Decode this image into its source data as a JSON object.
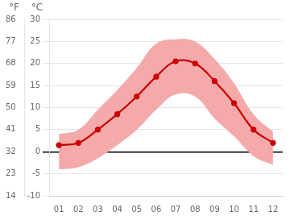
{
  "chart_data": {
    "type": "line",
    "categories": [
      "01",
      "02",
      "03",
      "04",
      "05",
      "06",
      "07",
      "08",
      "09",
      "10",
      "11",
      "12"
    ],
    "series": [
      {
        "values": [
          1.5,
          2.0,
          5.0,
          8.5,
          12.5,
          17.0,
          20.5,
          20.0,
          16.0,
          11.0,
          5.0,
          2.0
        ],
        "color": "#cc0000",
        "marker": "circle"
      }
    ],
    "band": {
      "lower": [
        -4.0,
        -3.5,
        -1.5,
        1.5,
        5.0,
        9.5,
        13.0,
        12.5,
        7.5,
        3.5,
        -1.0,
        -3.0
      ],
      "upper": [
        4.0,
        5.0,
        9.5,
        14.0,
        19.0,
        24.5,
        25.5,
        25.0,
        21.0,
        15.5,
        8.5,
        4.5
      ],
      "color": "#f4aaaa"
    },
    "hlines": [
      {
        "value": 0,
        "color": "#000000"
      }
    ],
    "ylim": [
      -10,
      30
    ],
    "yticks": [
      -10,
      -5,
      0,
      5,
      10,
      15,
      20,
      25,
      30
    ],
    "ylabel": "°C",
    "y2lim": [
      14,
      86
    ],
    "y2ticks": [
      14,
      23,
      32,
      41,
      50,
      59,
      68,
      77,
      86
    ],
    "y2label": "°F",
    "grid": "y",
    "tick_labels": true
  }
}
